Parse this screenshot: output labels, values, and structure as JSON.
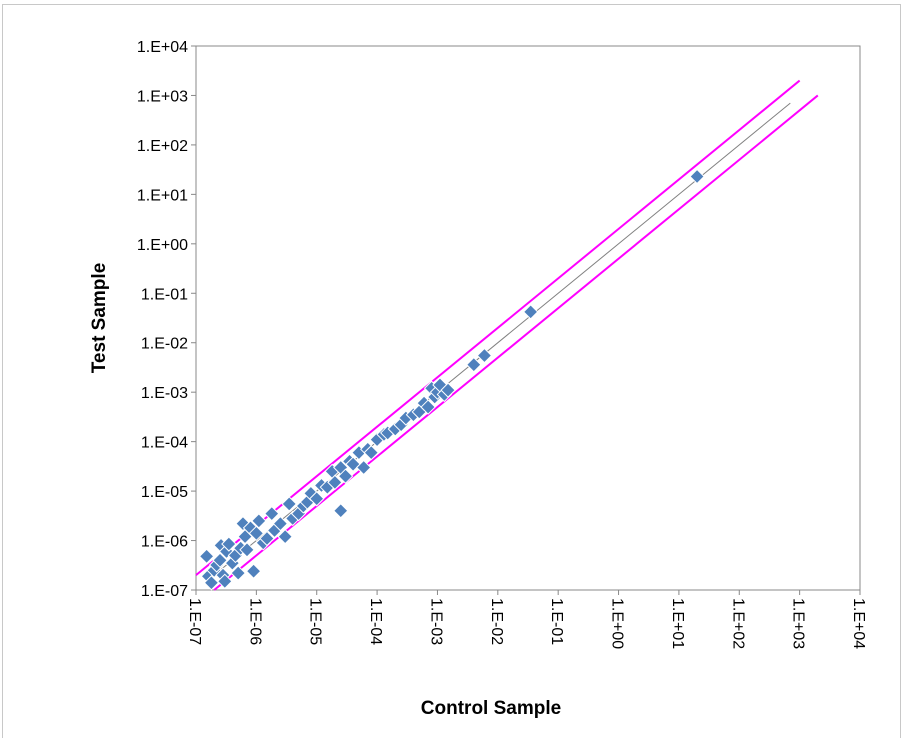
{
  "chart_data": {
    "type": "scatter",
    "xlabel": "Control Sample",
    "ylabel": "Test Sample",
    "scale": {
      "x": "log10",
      "y": "log10"
    },
    "xlim": [
      1e-07,
      10000.0
    ],
    "ylim": [
      1e-07,
      10000.0
    ],
    "x_ticks": [
      "1.E-07",
      "1.E-06",
      "1.E-05",
      "1.E-04",
      "1.E-03",
      "1.E-02",
      "1.E-01",
      "1.E+00",
      "1.E+01",
      "1.E+02",
      "1.E+03",
      "1.E+04"
    ],
    "y_ticks": [
      "1.E-07",
      "1.E-06",
      "1.E-05",
      "1.E-04",
      "1.E-03",
      "1.E-02",
      "1.E-01",
      "1.E+00",
      "1.E+01",
      "1.E+02",
      "1.E+03",
      "1.E+04"
    ],
    "grid": false,
    "legend": "none",
    "series": [
      {
        "marker": "diamond",
        "color": "#4f81bd",
        "points": [
          [
            1.5e-07,
            4.8e-07
          ],
          [
            1.6e-07,
            1.9e-07
          ],
          [
            1.8e-07,
            1.4e-07
          ],
          [
            2e-07,
            2.5e-07
          ],
          [
            2.2e-07,
            3.2e-07
          ],
          [
            2.5e-07,
            4e-07
          ],
          [
            2.6e-07,
            8e-07
          ],
          [
            2.8e-07,
            2e-07
          ],
          [
            3e-07,
            1.5e-07
          ],
          [
            3.2e-07,
            6e-07
          ],
          [
            3.5e-07,
            8.5e-07
          ],
          [
            4e-07,
            3.5e-07
          ],
          [
            4.5e-07,
            5e-07
          ],
          [
            5e-07,
            2.2e-07
          ],
          [
            5.5e-07,
            7e-07
          ],
          [
            6e-07,
            2.2e-06
          ],
          [
            6.5e-07,
            1.2e-06
          ],
          [
            7e-07,
            6.5e-07
          ],
          [
            8e-07,
            1.8e-06
          ],
          [
            9e-07,
            2.4e-07
          ],
          [
            1e-06,
            1.4e-06
          ],
          [
            1.1e-06,
            2.5e-06
          ],
          [
            1.3e-06,
            9e-07
          ],
          [
            1.5e-06,
            1.1e-06
          ],
          [
            1.8e-06,
            3.5e-06
          ],
          [
            2e-06,
            1.6e-06
          ],
          [
            2.5e-06,
            2.2e-06
          ],
          [
            3e-06,
            1.2e-06
          ],
          [
            3.5e-06,
            5.5e-06
          ],
          [
            4e-06,
            2.8e-06
          ],
          [
            5e-06,
            3.5e-06
          ],
          [
            6e-06,
            5e-06
          ],
          [
            7e-06,
            6e-06
          ],
          [
            8e-06,
            9e-06
          ],
          [
            1e-05,
            7e-06
          ],
          [
            1.2e-05,
            1.3e-05
          ],
          [
            1.5e-05,
            1.2e-05
          ],
          [
            1.8e-05,
            2.5e-05
          ],
          [
            2e-05,
            1.5e-05
          ],
          [
            2.5e-05,
            3e-05
          ],
          [
            2.5e-05,
            4e-06
          ],
          [
            3e-05,
            2e-05
          ],
          [
            3.5e-05,
            4e-05
          ],
          [
            4e-05,
            3.5e-05
          ],
          [
            5e-05,
            6e-05
          ],
          [
            6e-05,
            3e-05
          ],
          [
            7e-05,
            7e-05
          ],
          [
            8e-05,
            6e-05
          ],
          [
            0.0001,
            0.00011
          ],
          [
            0.00013,
            0.00014
          ],
          [
            0.00015,
            0.00015
          ],
          [
            0.0002,
            0.00018
          ],
          [
            0.00025,
            0.00022
          ],
          [
            0.0003,
            0.0003
          ],
          [
            0.0004,
            0.00035
          ],
          [
            0.0005,
            0.0004
          ],
          [
            0.0006,
            0.0006
          ],
          [
            0.0007,
            0.0005
          ],
          [
            0.0008,
            0.0012
          ],
          [
            0.0009,
            0.0008
          ],
          [
            0.001,
            0.001
          ],
          [
            0.0011,
            0.0014
          ],
          [
            0.0013,
            0.0009
          ],
          [
            0.0015,
            0.0011
          ],
          [
            0.004,
            0.0036
          ],
          [
            0.006,
            0.0055
          ],
          [
            0.035,
            0.042
          ],
          [
            20,
            23
          ]
        ]
      }
    ],
    "lines": [
      {
        "name": "identity",
        "color": "#808080",
        "points": [
          [
            1.6e-07,
            1.6e-07
          ],
          [
            700,
            700
          ]
        ]
      },
      {
        "name": "upper-bound",
        "color": "#ff00ff",
        "points": [
          [
            1e-07,
            2e-07
          ],
          [
            1000,
            2000
          ]
        ]
      },
      {
        "name": "lower-bound",
        "color": "#ff00ff",
        "points": [
          [
            2e-07,
            1e-07
          ],
          [
            2000,
            1000
          ]
        ]
      }
    ]
  }
}
